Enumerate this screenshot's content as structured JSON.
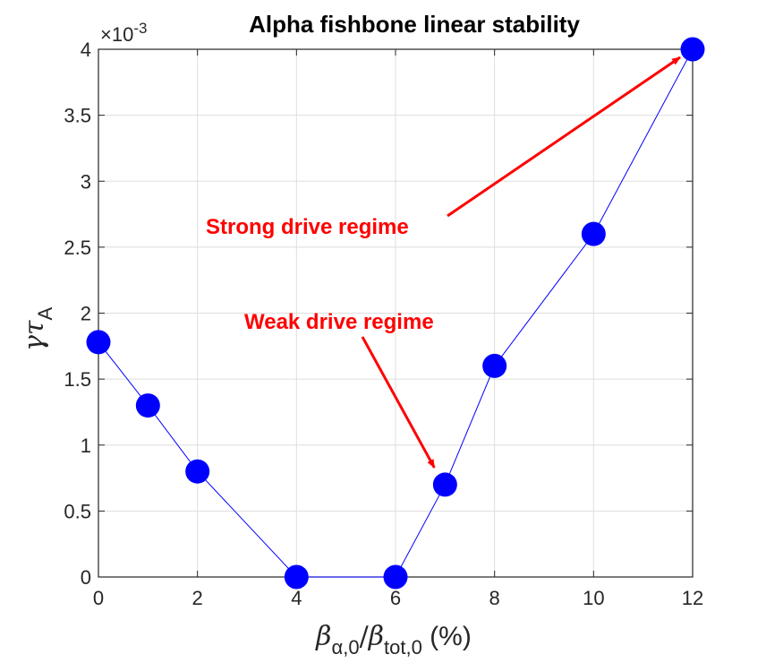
{
  "chart_data": {
    "type": "line",
    "title": "Alpha fishbone linear stability",
    "x": [
      0,
      1,
      2,
      4,
      6,
      7,
      8,
      10,
      12
    ],
    "series": [
      {
        "values": [
          1.78,
          1.3,
          0.8,
          0.0,
          0.0,
          0.7,
          1.6,
          2.6,
          4.0
        ]
      }
    ],
    "xlim": [
      0,
      12
    ],
    "ylim": [
      0,
      4
    ],
    "xticks": [
      "0",
      "2",
      "4",
      "6",
      "8",
      "10",
      "12"
    ],
    "yticks": [
      "0",
      "0.5",
      "1",
      "1.5",
      "2",
      "2.5",
      "3",
      "3.5",
      "4"
    ],
    "y_exponent": {
      "base": "×10",
      "power": "-3"
    },
    "xlabel": {
      "b1": "β",
      "b1_sub": "α,0",
      "slash": "/",
      "b2": "β",
      "b2_sub": "tot,0",
      "unit": " (%)"
    },
    "ylabel": {
      "main": "γτ",
      "sub": "A"
    },
    "grid": true,
    "line_color": "#0000ff",
    "marker_color": "#0000ff",
    "annotations": [
      {
        "text": "Strong drive regime",
        "color": "#ff0000",
        "arrow_to": [
          12,
          4.0
        ]
      },
      {
        "text": "Weak drive regime",
        "color": "#ff0000",
        "arrow_to": [
          7,
          0.7
        ]
      }
    ]
  }
}
